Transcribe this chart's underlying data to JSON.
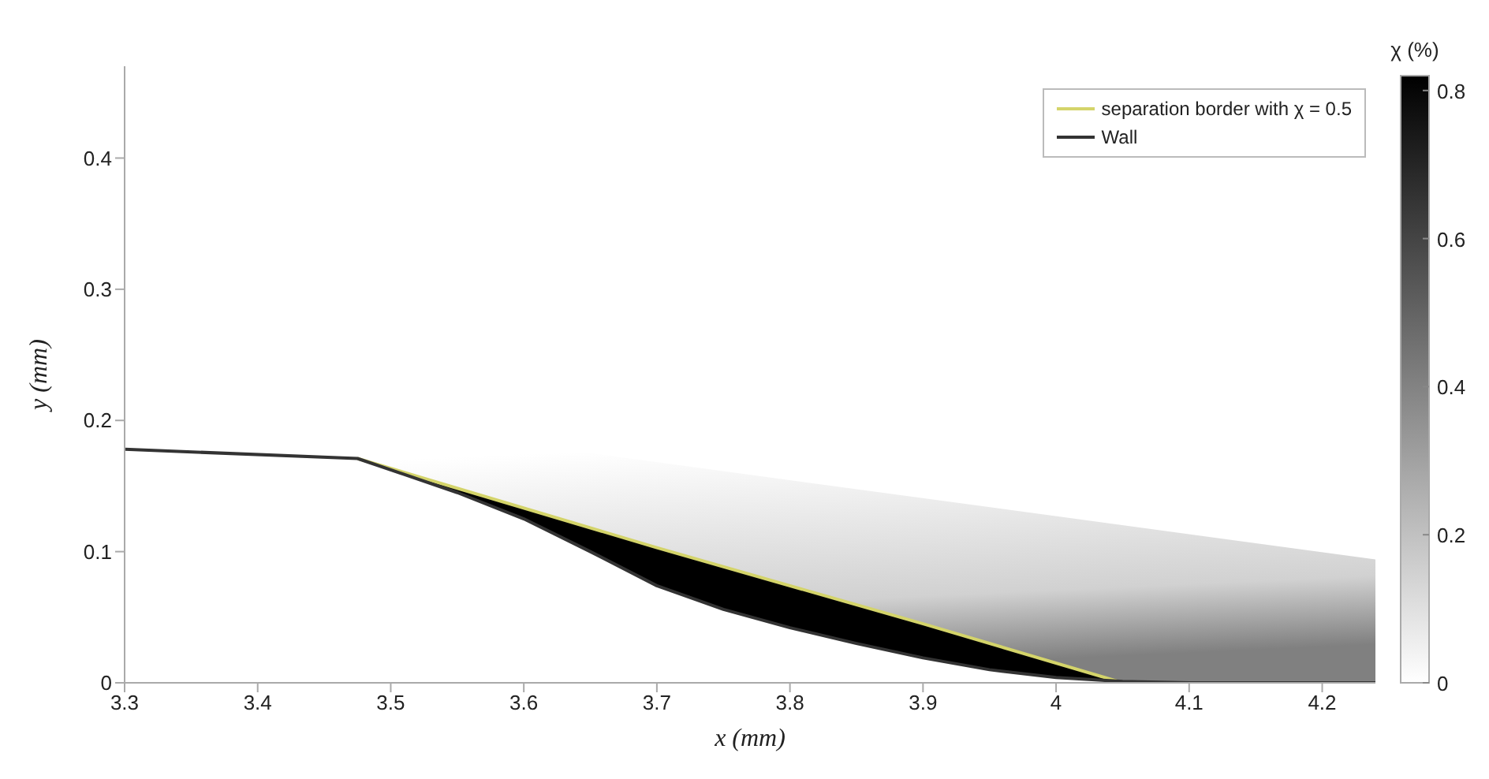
{
  "chart_data": {
    "type": "line",
    "xlabel": "x (mm)",
    "ylabel": "y (mm)",
    "clabel": "χ (%)",
    "xlim": [
      3.3,
      4.24
    ],
    "ylim": [
      0,
      0.47
    ],
    "xticks": [
      3.3,
      3.4,
      3.5,
      3.6,
      3.7,
      3.8,
      3.9,
      4,
      4.1,
      4.2
    ],
    "yticks": [
      0,
      0.1,
      0.2,
      0.3,
      0.4
    ],
    "clim": [
      0,
      0.82
    ],
    "cticks": [
      0,
      0.2,
      0.4,
      0.6,
      0.8
    ],
    "legend": "top right",
    "series": [
      {
        "type": "line",
        "name": "separation border with χ = 0.5",
        "color": "#d4d46a",
        "x": [
          3.475,
          3.7,
          3.9,
          4.05
        ],
        "values": [
          0.171,
          0.103,
          0.045,
          0
        ]
      },
      {
        "type": "line",
        "name": "Wall",
        "color": "#333333",
        "x": [
          3.3,
          3.475,
          3.55,
          3.6,
          3.65,
          3.7,
          3.75,
          3.8,
          3.85,
          3.9,
          3.95,
          4.0,
          4.05,
          4.1,
          4.24
        ],
        "values": [
          0.178,
          0.171,
          0.145,
          0.125,
          0.1,
          0.074,
          0.056,
          0.042,
          0.03,
          0.019,
          0.01,
          0.004,
          0.001,
          0,
          0
        ]
      }
    ]
  }
}
